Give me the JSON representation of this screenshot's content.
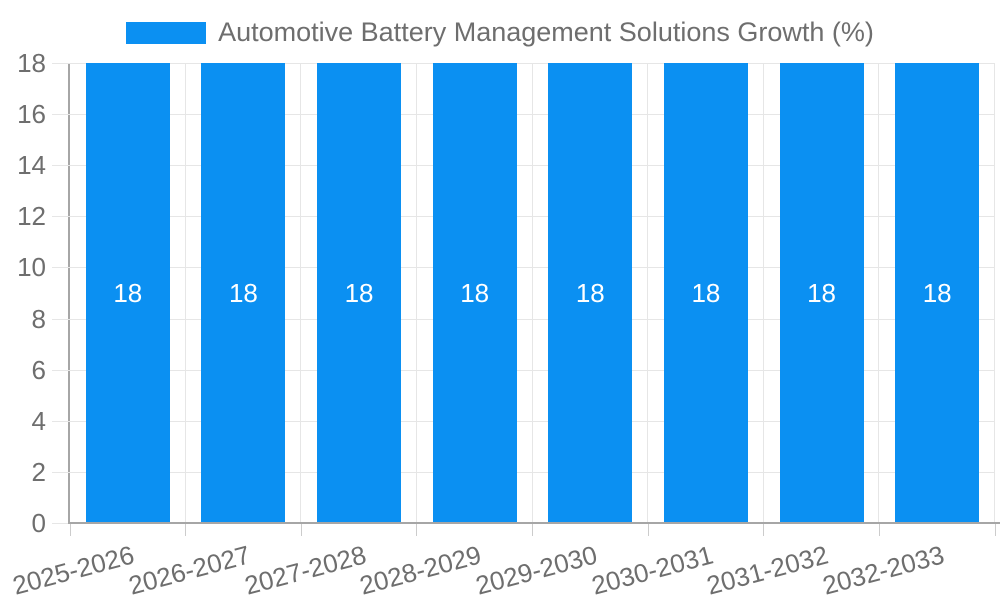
{
  "chart_data": {
    "type": "bar",
    "title": "Automotive Battery Management Solutions Growth (%)",
    "categories": [
      "2025-2026",
      "2026-2027",
      "2027-2028",
      "2028-2029",
      "2029-2030",
      "2030-2031",
      "2031-2032",
      "2032-2033"
    ],
    "values": [
      18,
      18,
      18,
      18,
      18,
      18,
      18,
      18
    ],
    "bar_value_labels": [
      "18",
      "18",
      "18",
      "18",
      "18",
      "18",
      "18",
      "18"
    ],
    "xlabel": "",
    "ylabel": "",
    "ylim": [
      0,
      18
    ],
    "ytick_step": 2,
    "yticks": [
      0,
      2,
      4,
      6,
      8,
      10,
      12,
      14,
      16,
      18
    ],
    "grid": true,
    "legend_position": "top",
    "colors": {
      "bar": "#0b90f2",
      "bar_label": "#ffffff",
      "axis_text": "#6e6e6e",
      "grid": "#e6e6e6",
      "axis_line": "#a6a6a6",
      "tick": "#cccccc",
      "background": "#ffffff"
    }
  }
}
